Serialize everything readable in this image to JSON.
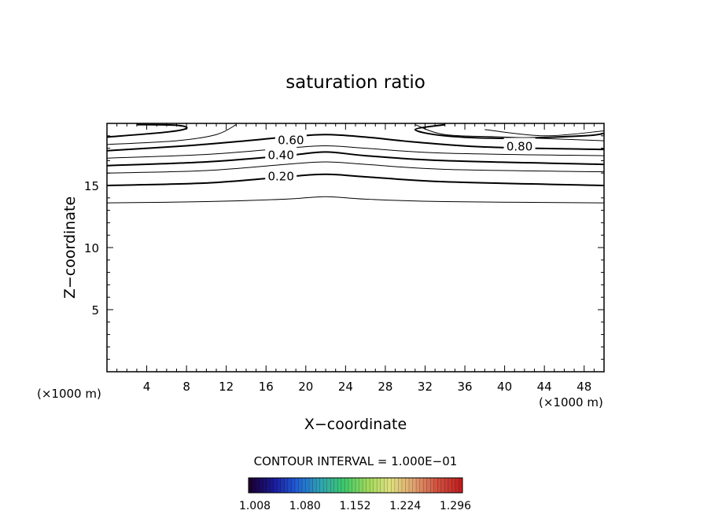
{
  "chart_data": {
    "type": "contour",
    "title": "saturation ratio",
    "xlabel": "X−coordinate",
    "ylabel": "Z−coordinate",
    "x_unit_left": "(×1000 m)",
    "x_unit_right": "(×1000 m)",
    "xlim": [
      0,
      50
    ],
    "ylim": [
      0,
      20
    ],
    "x_ticks": [
      4,
      8,
      12,
      16,
      20,
      24,
      28,
      32,
      36,
      40,
      44,
      48
    ],
    "y_ticks": [
      5,
      10,
      15
    ],
    "contour_interval_text": "CONTOUR INTERVAL = 1.000E−01",
    "contour_labels": [
      {
        "text": "0.60",
        "x": 18.5,
        "y": 18.7
      },
      {
        "text": "0.40",
        "x": 17.5,
        "y": 17.5
      },
      {
        "text": "0.20",
        "x": 17.5,
        "y": 15.8
      },
      {
        "text": "0.80",
        "x": 41.5,
        "y": 18.2
      }
    ],
    "contours": [
      {
        "bold": false,
        "points": [
          [
            0,
            13.6
          ],
          [
            10,
            13.7
          ],
          [
            18,
            13.9
          ],
          [
            22,
            14.1
          ],
          [
            26,
            13.9
          ],
          [
            34,
            13.7
          ],
          [
            50,
            13.6
          ]
        ]
      },
      {
        "bold": true,
        "points": [
          [
            0,
            15.0
          ],
          [
            10,
            15.2
          ],
          [
            18,
            15.7
          ],
          [
            22,
            15.9
          ],
          [
            26,
            15.7
          ],
          [
            34,
            15.3
          ],
          [
            50,
            15.0
          ]
        ]
      },
      {
        "bold": false,
        "points": [
          [
            0,
            16.0
          ],
          [
            10,
            16.2
          ],
          [
            18,
            16.7
          ],
          [
            22,
            16.9
          ],
          [
            26,
            16.7
          ],
          [
            34,
            16.3
          ],
          [
            50,
            16.1
          ]
        ]
      },
      {
        "bold": true,
        "points": [
          [
            0,
            16.6
          ],
          [
            10,
            16.9
          ],
          [
            18,
            17.4
          ],
          [
            22,
            17.7
          ],
          [
            26,
            17.4
          ],
          [
            34,
            17.0
          ],
          [
            50,
            16.7
          ]
        ]
      },
      {
        "bold": false,
        "points": [
          [
            0,
            17.2
          ],
          [
            10,
            17.5
          ],
          [
            18,
            18.0
          ],
          [
            22,
            18.2
          ],
          [
            26,
            18.0
          ],
          [
            34,
            17.6
          ],
          [
            50,
            17.4
          ]
        ]
      },
      {
        "bold": true,
        "points": [
          [
            0,
            17.8
          ],
          [
            8,
            18.2
          ],
          [
            14,
            18.6
          ],
          [
            18,
            18.9
          ],
          [
            22,
            19.1
          ],
          [
            26,
            18.9
          ],
          [
            31,
            18.5
          ],
          [
            38,
            18.1
          ],
          [
            50,
            17.9
          ]
        ]
      },
      {
        "bold": false,
        "points": [
          [
            0,
            18.3
          ],
          [
            7,
            18.6
          ],
          [
            11,
            19.1
          ],
          [
            13,
            19.9
          ]
        ]
      },
      {
        "bold": false,
        "points": [
          [
            31,
            19.9
          ],
          [
            34,
            19.1
          ],
          [
            40,
            18.9
          ],
          [
            50,
            18.6
          ]
        ]
      },
      {
        "bold": true,
        "points": [
          [
            0,
            18.9
          ],
          [
            6,
            19.3
          ],
          [
            8,
            19.6
          ],
          [
            7,
            19.85
          ],
          [
            3,
            19.9
          ]
        ]
      },
      {
        "bold": true,
        "points": [
          [
            34,
            19.9
          ],
          [
            31,
            19.5
          ],
          [
            34,
            19.0
          ],
          [
            40,
            18.8
          ],
          [
            48,
            19.0
          ],
          [
            50,
            19.2
          ]
        ]
      },
      {
        "bold": false,
        "points": [
          [
            38,
            19.5
          ],
          [
            44,
            19.0
          ],
          [
            50,
            19.4
          ]
        ]
      }
    ],
    "colorbar": {
      "tick_labels": [
        "1.008",
        "1.080",
        "1.152",
        "1.224",
        "1.296"
      ],
      "colors": [
        "#1a0033",
        "#1a1a99",
        "#1f5fd6",
        "#2fa3b0",
        "#3cc86b",
        "#9ed85a",
        "#e0e080",
        "#e0a070",
        "#d05040",
        "#c02020"
      ]
    }
  }
}
